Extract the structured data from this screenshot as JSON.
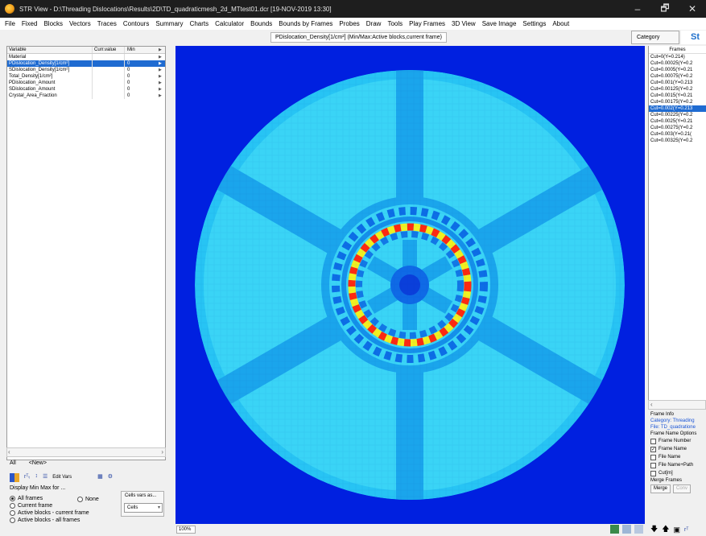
{
  "window": {
    "title": "STR View - D:\\Threading Dislocations\\Results\\2D\\TD_quadraticmesh_2d_MTtest01.dcr [19-NOV-2019 13:30]",
    "minimize": "–",
    "maximize": "🗗",
    "close": "✕"
  },
  "menu": [
    "File",
    "Fixed",
    "Blocks",
    "Vectors",
    "Traces",
    "Contours",
    "Summary",
    "Charts",
    "Calculator",
    "Bounds",
    "Bounds by Frames",
    "Probes",
    "Draw",
    "Tools",
    "Play Frames",
    "3D View",
    "Save Image",
    "Settings",
    "About"
  ],
  "graph_title": "PDislocation_Density[1/cm²] (Min/Max:Active blocks,current frame)",
  "right_tabs": {
    "category": "Category",
    "extra": "St"
  },
  "variables": {
    "headers": {
      "name": "Variable",
      "current": "Curr.value",
      "min": "Min"
    },
    "rows": [
      {
        "name": "Material",
        "current": "",
        "min": "",
        "selected": false
      },
      {
        "name": "PDislocation_Density[1/cm²]",
        "current": "",
        "min": "0",
        "selected": true
      },
      {
        "name": "SDislocation_Density[1/cm²]",
        "current": "",
        "min": "0",
        "selected": false
      },
      {
        "name": "Total_Density[1/cm²]",
        "current": "",
        "min": "0",
        "selected": false
      },
      {
        "name": "PDislocation_Amount",
        "current": "",
        "min": "0",
        "selected": false
      },
      {
        "name": "SDislocation_Amount",
        "current": "",
        "min": "0",
        "selected": false
      },
      {
        "name": "Crystal_Area_Fraction",
        "current": "",
        "min": "0",
        "selected": false
      }
    ]
  },
  "filter": {
    "label": "All",
    "value": "<New>"
  },
  "toolbar": {
    "edit_vars": "Edit Vars",
    "vars_icon": "rᵀₜ",
    "sort_icon": "↕",
    "list_icon": "☰",
    "grid_icon": "▦",
    "settings_icon": "⚙"
  },
  "minmax": {
    "label": "Display Min Max for ...",
    "options": [
      "All frames",
      "Current frame",
      "Active blocks - current frame",
      "Active blocks - all frames"
    ],
    "none_label": "None",
    "selected_index": 0
  },
  "cells": {
    "label": "Cells vars as...",
    "value": "Cells"
  },
  "zoom": "100%",
  "frames": {
    "header": "Frames",
    "items": [
      "Cut=0(Y=0.214)",
      "Cut=0.00025(Y=0.2",
      "Cut=0.0005(Y=0.21",
      "Cut=0.00075(Y=0.2",
      "Cut=0.001(Y=0.213",
      "Cut=0.00125(Y=0.2",
      "Cut=0.0015(Y=0.21",
      "Cut=0.00175(Y=0.2",
      "Cut=0.002(Y=0.213",
      "Cut=0.00225(Y=0.2",
      "Cut=0.0025(Y=0.21",
      "Cut=0.00275(Y=0.2",
      "Cut=0.003(Y=0.21(",
      "Cut=0.00325(Y=0.2"
    ],
    "selected_index": 8
  },
  "frame_info": {
    "label": "Frame Info",
    "category": "Category: Threading",
    "file": "File: TD_quadratione"
  },
  "frame_name_options": {
    "label": "Frame Name Options",
    "items": [
      {
        "label": "Frame Number",
        "checked": false
      },
      {
        "label": "Frame Name",
        "checked": true
      },
      {
        "label": "File Name",
        "checked": false
      },
      {
        "label": "File Name+Path",
        "checked": false
      },
      {
        "label": "Cut[m]",
        "checked": false
      }
    ]
  },
  "merge": {
    "label": "Merge Frames",
    "merge_btn": "Merge",
    "conv_btn": "Conv"
  },
  "colors": {
    "background_blue": "#0020e0",
    "selection": "#1f6bd1"
  }
}
